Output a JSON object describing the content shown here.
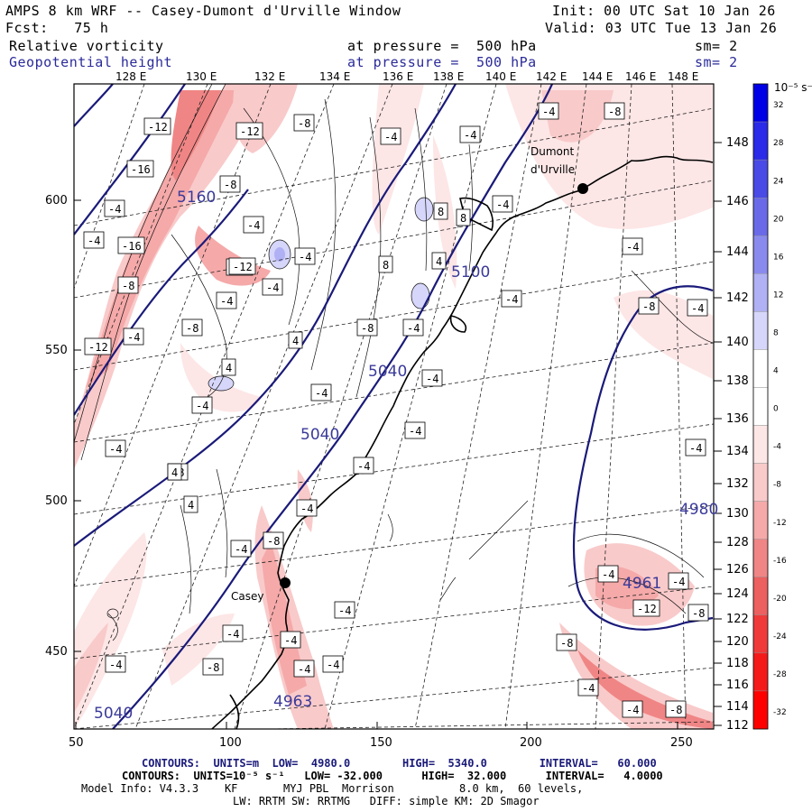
{
  "header": {
    "model_title": "AMPS 8 km WRF -- Casey-Dumont d'Urville Window",
    "init": "Init: 00 UTC Sat 10 Jan 26",
    "fcst": "Fcst:   75 h",
    "valid": "Valid: 03 UTC Tue 13 Jan 26",
    "field1_name": "Relative vorticity",
    "field1_pressure": "at pressure =  500 hPa",
    "field1_sm": "sm= 2",
    "field2_name": "Geopotential height",
    "field2_pressure": "at pressure =  500 hPa",
    "field2_sm": "sm= 2"
  },
  "top_axis": [
    "128 E",
    "130 E",
    "132 E",
    "134 E",
    "136 E",
    "138 E",
    "140 E",
    "142 E",
    "144 E",
    "146 E",
    "148 E"
  ],
  "right_axis": [
    "148 E",
    "146 E",
    "144 E",
    "142 E",
    "140 E",
    "138 E",
    "136 E",
    "134 E",
    "132 E",
    "130 E",
    "128 E",
    "126 E",
    "124 E",
    "122 E",
    "120 E",
    "118 E",
    "116 E",
    "114 E",
    "112 E"
  ],
  "left_axis": [
    "600",
    "550",
    "500",
    "450"
  ],
  "bottom_axis": [
    "50",
    "100",
    "150",
    "200",
    "250"
  ],
  "colorbar": {
    "unit": "10⁻⁵ s⁻¹",
    "labels": [
      "32",
      "28",
      "24",
      "20",
      "16",
      "12",
      "8",
      "4",
      "0",
      "-4",
      "-8",
      "-12",
      "-16",
      "-20",
      "-24",
      "-28",
      "-32"
    ],
    "colors": [
      "#0000e6",
      "#2a2ae8",
      "#4a4ae6",
      "#6a6ae8",
      "#8a8aee",
      "#b0b0f4",
      "#d6d6fa",
      "#ffffff",
      "#ffffff",
      "#fde6e6",
      "#f9caca",
      "#f5a9a9",
      "#f08585",
      "#ec6060",
      "#f03a3a",
      "#f51a1a",
      "#ff0000"
    ]
  },
  "stations": {
    "dumont": "Dumont\nd'Urville",
    "casey": "Casey"
  },
  "height_labels": [
    "5160",
    "5100",
    "5040",
    "5040",
    "4980",
    "4961",
    "4963",
    "5040"
  ],
  "vort_labels": [
    "-12",
    "-12",
    "-8",
    "-16",
    "-8",
    "-4",
    "-16",
    "-12",
    "-8",
    "-12",
    "-4",
    "-4",
    "-8",
    "-12",
    "-4",
    "4",
    "-4",
    "-4",
    "-4",
    "-4",
    "8",
    "4",
    "8",
    "8",
    "-4",
    "4",
    "-4",
    "-4",
    "-8",
    "-4",
    "-4",
    "-4",
    "-4",
    "-4",
    "-4",
    "-4",
    "-8",
    "4",
    "4",
    "-4",
    "-8",
    "-4",
    "-4",
    "-8",
    "-4",
    "-8",
    "-4",
    "-4",
    "-4",
    "-4",
    "-12",
    "-8",
    "-8",
    "-4",
    "-4",
    "-8",
    "-4",
    "-8",
    "-4",
    "-4",
    "-4",
    "-4",
    "-4"
  ],
  "footer": {
    "line1": "CONTOURS:  UNITS=m  LOW=  4980.0        HIGH=  5340.0        INTERVAL=   60.000",
    "line2": "CONTOURS:  UNITS=10⁻⁵ s⁻¹   LOW= -32.000      HIGH=  32.000      INTERVAL=   4.0000",
    "line3": "Model Info: V4.3.3    KF       MYJ PBL  Morrison          8.0 km,  60 levels,",
    "line4": "LW: RRTM SW: RRTMG   DIFF: simple KM: 2D Smagor"
  }
}
